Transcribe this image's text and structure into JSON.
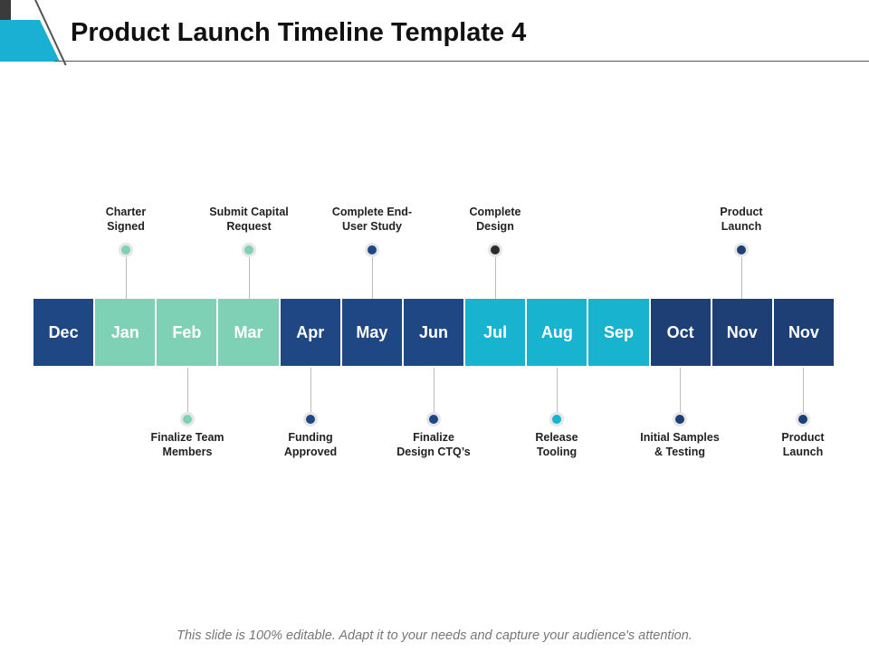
{
  "title": "Product Launch Timeline Template 4",
  "footer": "This slide is 100% editable. Adapt it to your needs and capture your audience's attention.",
  "months": [
    {
      "label": "Dec",
      "color": "#1e4784"
    },
    {
      "label": "Jan",
      "color": "#7fd1b5"
    },
    {
      "label": "Feb",
      "color": "#7fd1b5"
    },
    {
      "label": "Mar",
      "color": "#7fd1b5"
    },
    {
      "label": "Apr",
      "color": "#1e4784"
    },
    {
      "label": "May",
      "color": "#1e4784"
    },
    {
      "label": "Jun",
      "color": "#1e4784"
    },
    {
      "label": "Jul",
      "color": "#17b3cf"
    },
    {
      "label": "Aug",
      "color": "#17b3cf"
    },
    {
      "label": "Sep",
      "color": "#17b3cf"
    },
    {
      "label": "Oct",
      "color": "#1e3f75"
    },
    {
      "label": "Nov",
      "color": "#1e3f75"
    },
    {
      "label": "Nov",
      "color": "#1e3f75"
    }
  ],
  "milestones_top": [
    {
      "label_line1": "Charter",
      "label_line2": "Signed",
      "month_index": 1,
      "dot_color": "#7fd1b5"
    },
    {
      "label_line1": "Submit Capital",
      "label_line2": "Request",
      "month_index": 3,
      "dot_color": "#7fd1b5"
    },
    {
      "label_line1": "Complete End-",
      "label_line2": "User Study",
      "month_index": 5,
      "dot_color": "#1e4784"
    },
    {
      "label_line1": "Complete",
      "label_line2": "Design",
      "month_index": 7,
      "dot_color": "#2b2b2b"
    },
    {
      "label_line1": "Product",
      "label_line2": "Launch",
      "month_index": 11,
      "dot_color": "#1e3f75"
    }
  ],
  "milestones_bottom": [
    {
      "label_line1": "Finalize Team",
      "label_line2": "Members",
      "month_index": 2,
      "dot_color": "#7fd1b5"
    },
    {
      "label_line1": "Funding",
      "label_line2": "Approved",
      "month_index": 4,
      "dot_color": "#1e4784"
    },
    {
      "label_line1": "Finalize",
      "label_line2": "Design CTQ’s",
      "month_index": 6,
      "dot_color": "#1e4784"
    },
    {
      "label_line1": "Release",
      "label_line2": "Tooling",
      "month_index": 8,
      "dot_color": "#17b3cf"
    },
    {
      "label_line1": "Initial Samples",
      "label_line2": "& Testing",
      "month_index": 10,
      "dot_color": "#1e3f75"
    },
    {
      "label_line1": "Product",
      "label_line2": "Launch",
      "month_index": 12,
      "dot_color": "#1e3f75"
    }
  ]
}
